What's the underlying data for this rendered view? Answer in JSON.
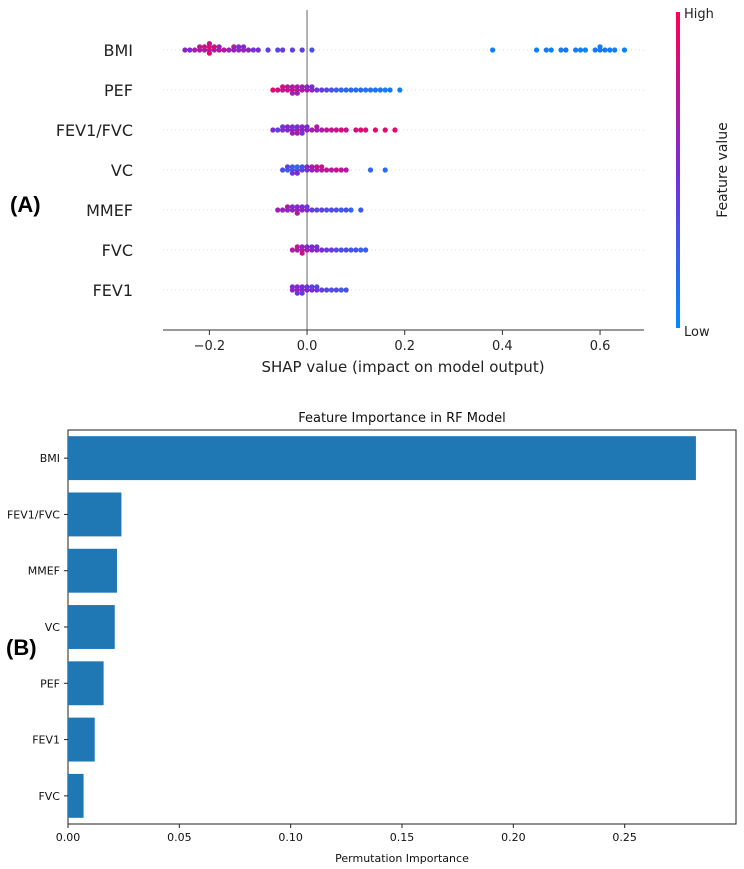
{
  "chart_data": [
    {
      "type": "scatter",
      "panel_label": "(A)",
      "title": "",
      "xlabel": "SHAP value (impact on model output)",
      "xlim": [
        -0.295,
        0.69
      ],
      "xticks": [
        -0.2,
        0.0,
        0.2,
        0.4,
        0.6
      ],
      "xtick_labels": [
        "−0.2",
        "0.0",
        "0.2",
        "0.4",
        "0.6"
      ],
      "features": [
        "BMI",
        "PEF",
        "FEV1/FVC",
        "VC",
        "MMEF",
        "FVC",
        "FEV1"
      ],
      "colorbar": {
        "label": "Feature value",
        "high": "High",
        "low": "Low",
        "high_color": "#ff0052",
        "low_color": "#008bfb"
      },
      "series": [
        {
          "name": "BMI",
          "points": [
            [
              -0.25,
              0.58
            ],
            [
              -0.24,
              0.5
            ],
            [
              -0.23,
              0.7
            ],
            [
              -0.22,
              0.65
            ],
            [
              -0.22,
              0.75
            ],
            [
              -0.21,
              0.7
            ],
            [
              -0.21,
              0.8
            ],
            [
              -0.2,
              0.72
            ],
            [
              -0.2,
              0.85
            ],
            [
              -0.2,
              0.9
            ],
            [
              -0.2,
              0.78
            ],
            [
              -0.19,
              0.66
            ],
            [
              -0.19,
              0.82
            ],
            [
              -0.18,
              0.7
            ],
            [
              -0.18,
              0.6
            ],
            [
              -0.17,
              0.75
            ],
            [
              -0.16,
              0.62
            ],
            [
              -0.15,
              0.55
            ],
            [
              -0.15,
              0.7
            ],
            [
              -0.14,
              0.6
            ],
            [
              -0.14,
              0.5
            ],
            [
              -0.13,
              0.65
            ],
            [
              -0.13,
              0.55
            ],
            [
              -0.12,
              0.58
            ],
            [
              -0.11,
              0.45
            ],
            [
              -0.1,
              0.5
            ],
            [
              -0.08,
              0.4
            ],
            [
              -0.06,
              0.35
            ],
            [
              -0.05,
              0.42
            ],
            [
              -0.03,
              0.4
            ],
            [
              -0.01,
              0.38
            ],
            [
              0.01,
              0.3
            ],
            [
              0.38,
              0.08
            ],
            [
              0.47,
              0.06
            ],
            [
              0.49,
              0.1
            ],
            [
              0.5,
              0.05
            ],
            [
              0.52,
              0.08
            ],
            [
              0.53,
              0.12
            ],
            [
              0.55,
              0.1
            ],
            [
              0.56,
              0.06
            ],
            [
              0.57,
              0.04
            ],
            [
              0.59,
              0.1
            ],
            [
              0.6,
              0.12
            ],
            [
              0.6,
              0.08
            ],
            [
              0.61,
              0.1
            ],
            [
              0.62,
              0.05
            ],
            [
              0.63,
              0.07
            ],
            [
              0.65,
              0.05
            ]
          ]
        },
        {
          "name": "PEF",
          "points": [
            [
              -0.07,
              0.9
            ],
            [
              -0.06,
              0.8
            ],
            [
              -0.05,
              0.75
            ],
            [
              -0.05,
              0.85
            ],
            [
              -0.04,
              0.8
            ],
            [
              -0.04,
              0.7
            ],
            [
              -0.03,
              0.82
            ],
            [
              -0.03,
              0.72
            ],
            [
              -0.03,
              0.65
            ],
            [
              -0.02,
              0.75
            ],
            [
              -0.02,
              0.68
            ],
            [
              -0.02,
              0.6
            ],
            [
              -0.01,
              0.7
            ],
            [
              -0.01,
              0.62
            ],
            [
              0.0,
              0.68
            ],
            [
              0.0,
              0.55
            ],
            [
              0.01,
              0.6
            ],
            [
              0.01,
              0.5
            ],
            [
              0.02,
              0.45
            ],
            [
              0.03,
              0.4
            ],
            [
              0.04,
              0.35
            ],
            [
              0.05,
              0.3
            ],
            [
              0.06,
              0.25
            ],
            [
              0.07,
              0.2
            ],
            [
              0.08,
              0.18
            ],
            [
              0.09,
              0.2
            ],
            [
              0.1,
              0.15
            ],
            [
              0.11,
              0.18
            ],
            [
              0.12,
              0.12
            ],
            [
              0.13,
              0.15
            ],
            [
              0.14,
              0.1
            ],
            [
              0.15,
              0.12
            ],
            [
              0.16,
              0.08
            ],
            [
              0.17,
              0.1
            ],
            [
              0.19,
              0.05
            ]
          ]
        },
        {
          "name": "FEV1/FVC",
          "points": [
            [
              -0.07,
              0.5
            ],
            [
              -0.06,
              0.4
            ],
            [
              -0.05,
              0.55
            ],
            [
              -0.05,
              0.45
            ],
            [
              -0.04,
              0.5
            ],
            [
              -0.04,
              0.6
            ],
            [
              -0.03,
              0.55
            ],
            [
              -0.03,
              0.48
            ],
            [
              -0.03,
              0.65
            ],
            [
              -0.02,
              0.6
            ],
            [
              -0.02,
              0.52
            ],
            [
              -0.02,
              0.7
            ],
            [
              -0.01,
              0.62
            ],
            [
              -0.01,
              0.55
            ],
            [
              -0.01,
              0.45
            ],
            [
              0.0,
              0.6
            ],
            [
              0.0,
              0.5
            ],
            [
              0.01,
              0.65
            ],
            [
              0.02,
              0.6
            ],
            [
              0.02,
              0.72
            ],
            [
              0.03,
              0.7
            ],
            [
              0.04,
              0.75
            ],
            [
              0.05,
              0.78
            ],
            [
              0.06,
              0.8
            ],
            [
              0.07,
              0.85
            ],
            [
              0.08,
              0.8
            ],
            [
              0.1,
              0.82
            ],
            [
              0.11,
              0.88
            ],
            [
              0.12,
              0.85
            ],
            [
              0.14,
              0.9
            ],
            [
              0.16,
              0.88
            ],
            [
              0.18,
              0.92
            ]
          ]
        },
        {
          "name": "VC",
          "points": [
            [
              -0.05,
              0.3
            ],
            [
              -0.04,
              0.2
            ],
            [
              -0.04,
              0.4
            ],
            [
              -0.03,
              0.3
            ],
            [
              -0.03,
              0.25
            ],
            [
              -0.03,
              0.45
            ],
            [
              -0.02,
              0.35
            ],
            [
              -0.02,
              0.2
            ],
            [
              -0.02,
              0.5
            ],
            [
              -0.01,
              0.4
            ],
            [
              -0.01,
              0.3
            ],
            [
              0.0,
              0.45
            ],
            [
              0.0,
              0.55
            ],
            [
              0.01,
              0.6
            ],
            [
              0.01,
              0.7
            ],
            [
              0.02,
              0.65
            ],
            [
              0.02,
              0.75
            ],
            [
              0.03,
              0.7
            ],
            [
              0.03,
              0.8
            ],
            [
              0.04,
              0.75
            ],
            [
              0.05,
              0.7
            ],
            [
              0.06,
              0.8
            ],
            [
              0.07,
              0.75
            ],
            [
              0.08,
              0.7
            ],
            [
              0.13,
              0.2
            ],
            [
              0.16,
              0.15
            ]
          ]
        },
        {
          "name": "MMEF",
          "points": [
            [
              -0.06,
              0.65
            ],
            [
              -0.05,
              0.6
            ],
            [
              -0.04,
              0.55
            ],
            [
              -0.04,
              0.7
            ],
            [
              -0.03,
              0.6
            ],
            [
              -0.03,
              0.5
            ],
            [
              -0.02,
              0.62
            ],
            [
              -0.02,
              0.55
            ],
            [
              -0.02,
              0.7
            ],
            [
              -0.01,
              0.6
            ],
            [
              -0.01,
              0.5
            ],
            [
              0.0,
              0.55
            ],
            [
              0.0,
              0.45
            ],
            [
              0.01,
              0.4
            ],
            [
              0.02,
              0.35
            ],
            [
              0.03,
              0.4
            ],
            [
              0.04,
              0.3
            ],
            [
              0.05,
              0.35
            ],
            [
              0.06,
              0.3
            ],
            [
              0.07,
              0.25
            ],
            [
              0.08,
              0.3
            ],
            [
              0.09,
              0.2
            ],
            [
              0.11,
              0.25
            ]
          ]
        },
        {
          "name": "FVC",
          "points": [
            [
              -0.03,
              0.7
            ],
            [
              -0.02,
              0.65
            ],
            [
              -0.02,
              0.75
            ],
            [
              -0.01,
              0.7
            ],
            [
              -0.01,
              0.6
            ],
            [
              -0.01,
              0.8
            ],
            [
              0.0,
              0.65
            ],
            [
              0.0,
              0.55
            ],
            [
              0.01,
              0.6
            ],
            [
              0.01,
              0.5
            ],
            [
              0.02,
              0.55
            ],
            [
              0.02,
              0.45
            ],
            [
              0.03,
              0.5
            ],
            [
              0.04,
              0.4
            ],
            [
              0.05,
              0.45
            ],
            [
              0.06,
              0.35
            ],
            [
              0.07,
              0.3
            ],
            [
              0.08,
              0.35
            ],
            [
              0.09,
              0.25
            ],
            [
              0.1,
              0.3
            ],
            [
              0.11,
              0.2
            ],
            [
              0.12,
              0.25
            ]
          ]
        },
        {
          "name": "FEV1",
          "points": [
            [
              -0.03,
              0.6
            ],
            [
              -0.03,
              0.5
            ],
            [
              -0.02,
              0.65
            ],
            [
              -0.02,
              0.55
            ],
            [
              -0.02,
              0.45
            ],
            [
              -0.01,
              0.6
            ],
            [
              -0.01,
              0.5
            ],
            [
              -0.01,
              0.4
            ],
            [
              0.0,
              0.55
            ],
            [
              0.0,
              0.45
            ],
            [
              0.01,
              0.5
            ],
            [
              0.01,
              0.4
            ],
            [
              0.02,
              0.45
            ],
            [
              0.02,
              0.35
            ],
            [
              0.03,
              0.4
            ],
            [
              0.04,
              0.35
            ],
            [
              0.05,
              0.3
            ],
            [
              0.06,
              0.35
            ],
            [
              0.07,
              0.25
            ],
            [
              0.08,
              0.3
            ]
          ]
        }
      ]
    },
    {
      "type": "bar",
      "orientation": "horizontal",
      "panel_label": "(B)",
      "title": "Feature Importance in RF Model",
      "xlabel": "Permutation Importance",
      "ylabel": "",
      "xlim": [
        0,
        0.3
      ],
      "xticks": [
        0.0,
        0.05,
        0.1,
        0.15,
        0.2,
        0.25
      ],
      "xtick_labels": [
        "0.00",
        "0.05",
        "0.10",
        "0.15",
        "0.20",
        "0.25"
      ],
      "categories": [
        "BMI",
        "FEV1/FVC",
        "MMEF",
        "VC",
        "PEF",
        "FEV1",
        "FVC"
      ],
      "values": [
        0.282,
        0.024,
        0.022,
        0.021,
        0.016,
        0.012,
        0.007
      ],
      "bar_color": "#1f77b4"
    }
  ]
}
